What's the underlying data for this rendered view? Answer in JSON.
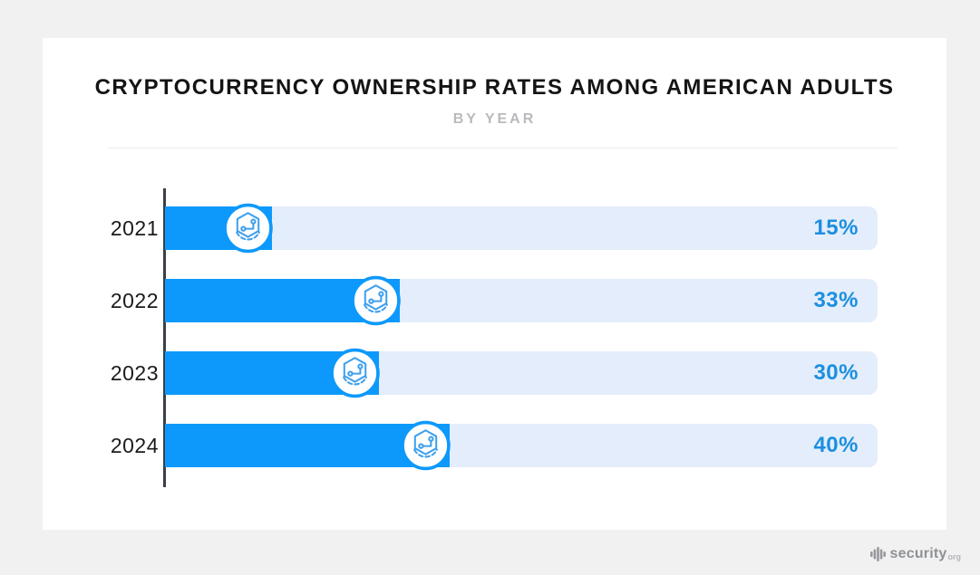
{
  "page": {
    "background": "#f1f1f2",
    "card_background": "#ffffff"
  },
  "header": {
    "title": "CRYPTOCURRENCY OWNERSHIP RATES AMONG AMERICAN ADULTS",
    "subtitle": "BY YEAR"
  },
  "chart_data": {
    "type": "bar",
    "orientation": "horizontal",
    "title": "CRYPTOCURRENCY OWNERSHIP RATES AMONG AMERICAN ADULTS",
    "subtitle": "BY YEAR",
    "categories": [
      "2021",
      "2022",
      "2023",
      "2024"
    ],
    "values": [
      15,
      33,
      30,
      40
    ],
    "value_labels": [
      "15%",
      "33%",
      "30%",
      "40%"
    ],
    "xlim": [
      0,
      100
    ],
    "grid": false,
    "legend": false,
    "bar_end_icon": "crypto-coin-icon",
    "colors": {
      "bar": "#0d99fb",
      "track": "#e4edfb",
      "value_label": "#1b8fe0",
      "axis": "#3b4046"
    }
  },
  "footer": {
    "logo_text": "security",
    "logo_suffix": "org"
  }
}
